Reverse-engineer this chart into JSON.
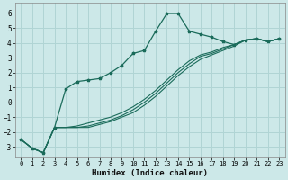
{
  "xlabel": "Humidex (Indice chaleur)",
  "xlim": [
    -0.5,
    23.5
  ],
  "ylim": [
    -3.7,
    6.7
  ],
  "xticks": [
    0,
    1,
    2,
    3,
    4,
    5,
    6,
    7,
    8,
    9,
    10,
    11,
    12,
    13,
    14,
    15,
    16,
    17,
    18,
    19,
    20,
    21,
    22,
    23
  ],
  "yticks": [
    -3,
    -2,
    -1,
    0,
    1,
    2,
    3,
    4,
    5,
    6
  ],
  "background_color": "#cce8e8",
  "line_color": "#1a6b5a",
  "grid_color": "#b0d4d4",
  "x": [
    0,
    1,
    2,
    3,
    4,
    5,
    6,
    7,
    8,
    9,
    10,
    11,
    12,
    13,
    14,
    15,
    16,
    17,
    18,
    19,
    20,
    21,
    22,
    23
  ],
  "y_main": [
    -2.5,
    -3.1,
    -3.4,
    -1.7,
    0.9,
    1.4,
    1.5,
    1.6,
    2.0,
    2.5,
    3.3,
    3.5,
    4.8,
    6.0,
    6.0,
    4.8,
    4.6,
    4.4,
    4.1,
    3.9,
    4.2,
    4.3,
    4.1,
    4.3
  ],
  "y_line1": [
    -2.5,
    -3.1,
    -3.4,
    -1.7,
    -1.7,
    -1.7,
    -1.7,
    -1.5,
    -1.3,
    -1.0,
    -0.7,
    -0.2,
    0.4,
    1.1,
    1.8,
    2.4,
    2.9,
    3.2,
    3.5,
    3.8,
    4.2,
    4.3,
    4.1,
    4.3
  ],
  "y_line2": [
    -2.5,
    -3.1,
    -3.4,
    -1.7,
    -1.7,
    -1.7,
    -1.6,
    -1.4,
    -1.2,
    -0.9,
    -0.5,
    0.0,
    0.6,
    1.3,
    2.0,
    2.6,
    3.1,
    3.3,
    3.6,
    3.9,
    4.2,
    4.3,
    4.1,
    4.3
  ],
  "y_line3": [
    -2.5,
    -3.1,
    -3.4,
    -1.7,
    -1.7,
    -1.6,
    -1.4,
    -1.2,
    -1.0,
    -0.7,
    -0.3,
    0.2,
    0.8,
    1.5,
    2.2,
    2.8,
    3.2,
    3.4,
    3.7,
    3.9,
    4.2,
    4.3,
    4.1,
    4.3
  ]
}
